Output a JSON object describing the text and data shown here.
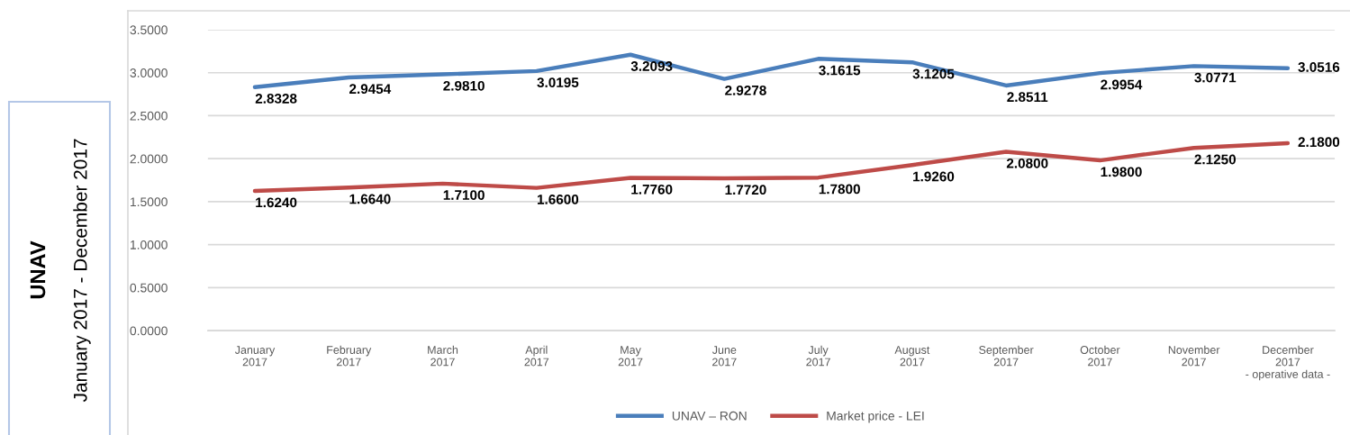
{
  "chart_data": {
    "type": "line",
    "title": "UNAV",
    "subtitle": "January 2017 - December 2017",
    "categories": [
      "January\n2017",
      "February\n2017",
      "March\n2017",
      "April\n2017",
      "May\n2017",
      "June\n2017",
      "July\n2017",
      "August\n2017",
      "September\n2017",
      "October\n2017",
      "November\n2017",
      "December\n2017\n- operative data -"
    ],
    "series": [
      {
        "name": "UNAV – RON",
        "color": "#4a7ebb",
        "values": [
          2.8328,
          2.9454,
          2.981,
          3.0195,
          3.2093,
          2.9278,
          3.1615,
          3.1205,
          2.8511,
          2.9954,
          3.0771,
          3.0516
        ],
        "value_labels": [
          "2.8328",
          "2.9454",
          "2.9810",
          "3.0195",
          "3.2093",
          "2.9278",
          "3.1615",
          "3.1205",
          "2.8511",
          "2.9954",
          "3.0771",
          "3.0516"
        ]
      },
      {
        "name": "Market price - LEI",
        "color": "#be4b48",
        "values": [
          1.624,
          1.664,
          1.71,
          1.66,
          1.776,
          1.772,
          1.78,
          1.926,
          2.08,
          1.98,
          2.125,
          2.18
        ],
        "value_labels": [
          "1.6240",
          "1.6640",
          "1.7100",
          "1.6600",
          "1.7760",
          "1.7720",
          "1.7800",
          "1.9260",
          "2.0800",
          "1.9800",
          "2.1250",
          "2.1800"
        ]
      }
    ],
    "ylim": [
      0,
      3.5
    ],
    "yticks": [
      {
        "value": 0,
        "label": "0.0000"
      },
      {
        "value": 0.5,
        "label": "0.5000"
      },
      {
        "value": 1,
        "label": "1.0000"
      },
      {
        "value": 1.5,
        "label": "1.5000"
      },
      {
        "value": 2,
        "label": "2.0000"
      },
      {
        "value": 2.5,
        "label": "2.5000"
      },
      {
        "value": 3,
        "label": "3.0000"
      },
      {
        "value": 3.5,
        "label": "3.5000"
      }
    ],
    "grid": "y",
    "legend": "bottom"
  }
}
